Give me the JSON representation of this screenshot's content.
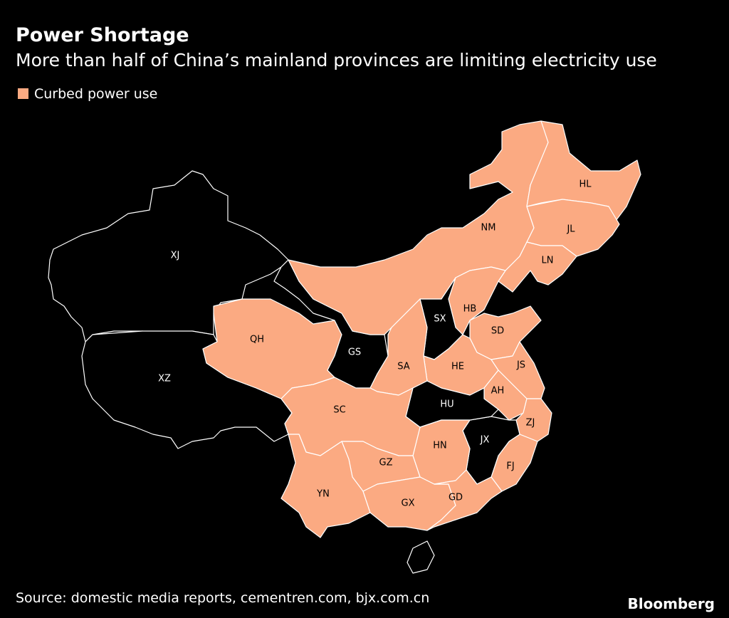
{
  "header": {
    "title": "Power Shortage",
    "subtitle": "More than half of China’s mainland provinces are limiting electricity use"
  },
  "legend": {
    "label": "Curbed power use",
    "color": "#fbaa82"
  },
  "regions": [
    {
      "label": "XJ",
      "curbed": false
    },
    {
      "label": "XZ",
      "curbed": false
    },
    {
      "label": "QH",
      "curbed": true
    },
    {
      "label": "GS",
      "curbed": false
    },
    {
      "label": "NM",
      "curbed": true
    },
    {
      "label": "HL",
      "curbed": true
    },
    {
      "label": "JL",
      "curbed": true
    },
    {
      "label": "LN",
      "curbed": true
    },
    {
      "label": "HB",
      "curbed": true
    },
    {
      "label": "SX",
      "curbed": false
    },
    {
      "label": "SD",
      "curbed": true
    },
    {
      "label": "HE",
      "curbed": true
    },
    {
      "label": "SA",
      "curbed": true
    },
    {
      "label": "JS",
      "curbed": true
    },
    {
      "label": "AH",
      "curbed": true
    },
    {
      "label": "ZJ",
      "curbed": true
    },
    {
      "label": "FJ",
      "curbed": true
    },
    {
      "label": "JX",
      "curbed": false
    },
    {
      "label": "HU",
      "curbed": false
    },
    {
      "label": "HN",
      "curbed": true
    },
    {
      "label": "SC",
      "curbed": true
    },
    {
      "label": "GZ",
      "curbed": true
    },
    {
      "label": "YN",
      "curbed": true
    },
    {
      "label": "GX",
      "curbed": true
    },
    {
      "label": "GD",
      "curbed": true
    }
  ],
  "footer": {
    "source": "Source: domestic media reports, cementren.com, bjx.com.cn",
    "brand": "Bloomberg"
  }
}
